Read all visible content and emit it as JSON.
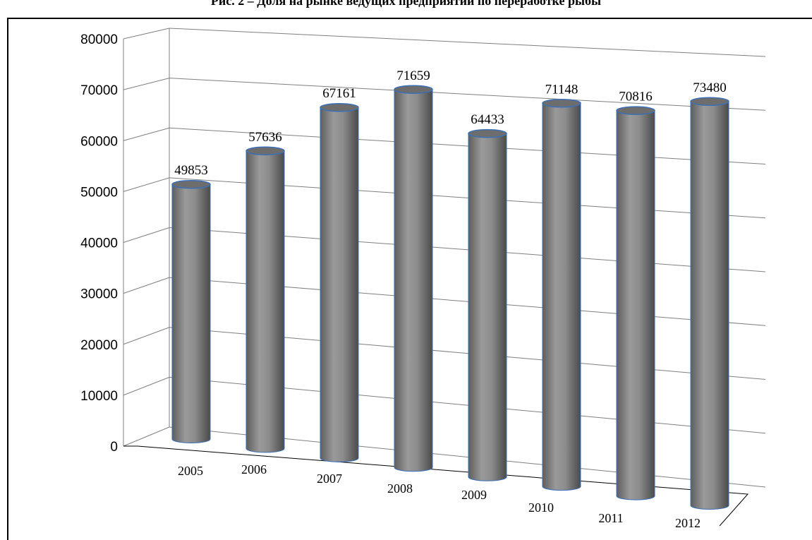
{
  "title": "Рис. 2 – Доля на рынке ведущих предприятий по переработке рыбы",
  "chart_data": {
    "type": "bar",
    "style": "3d-cylinder",
    "title": "Рис. 2 – Доля на рынке ведущих предприятий по переработке рыбы",
    "xlabel": "",
    "ylabel": "",
    "categories": [
      "2005",
      "2006",
      "2007",
      "2008",
      "2009",
      "2010",
      "2011",
      "2012"
    ],
    "values": [
      49853,
      57636,
      67161,
      71659,
      64433,
      71148,
      70816,
      73480
    ],
    "data_labels": [
      "49853",
      "57636",
      "67161",
      "71659",
      "64433",
      "71148",
      "70816",
      "73480"
    ],
    "ylim": [
      0,
      80000
    ],
    "yticks": [
      "0",
      "10000",
      "20000",
      "30000",
      "40000",
      "50000",
      "60000",
      "70000",
      "80000"
    ],
    "grid": true,
    "legend": "none",
    "colors": {
      "bar": "#8a8a8a",
      "bar_edge": "#3b6fb6",
      "grid": "#7f7f7f"
    }
  }
}
